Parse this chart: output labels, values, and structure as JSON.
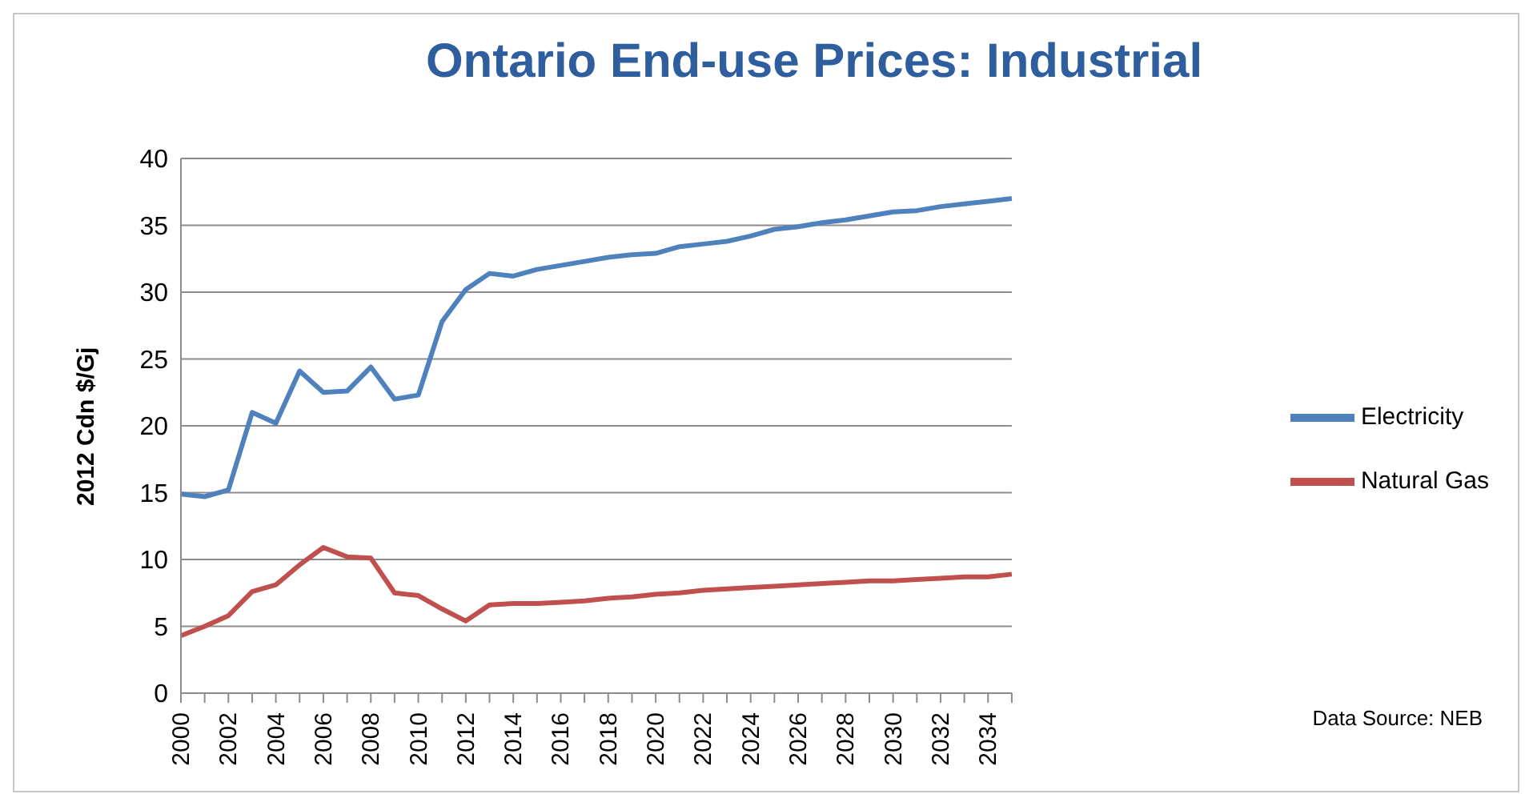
{
  "chart_data": {
    "type": "line",
    "title": "Ontario End-use Prices: Industrial",
    "ylabel": "2012 Cdn $/Gj",
    "categories": [
      "2000",
      null,
      "2002",
      null,
      "2004",
      null,
      "2006",
      null,
      "2008",
      null,
      "2010",
      null,
      "2012",
      null,
      "2014",
      null,
      "2016",
      null,
      "2018",
      null,
      "2020",
      null,
      "2022",
      null,
      "2024",
      null,
      "2026",
      null,
      "2028",
      null,
      "2030",
      null,
      "2032",
      null,
      "2034",
      null
    ],
    "series": [
      {
        "name": "Electricity",
        "color": "#4f81bd",
        "values": [
          14.9,
          14.7,
          15.2,
          21.0,
          20.2,
          24.1,
          22.5,
          22.6,
          24.4,
          22.0,
          22.3,
          27.8,
          30.2,
          31.4,
          31.2,
          31.7,
          32.0,
          32.3,
          32.6,
          32.8,
          32.9,
          33.4,
          33.6,
          33.8,
          34.2,
          34.7,
          34.9,
          35.2,
          35.4,
          35.7,
          36.0,
          36.1,
          36.4,
          36.6,
          36.8,
          37.0
        ]
      },
      {
        "name": "Natural Gas",
        "color": "#c0504d",
        "values": [
          4.3,
          5.0,
          5.8,
          7.6,
          8.1,
          9.6,
          10.9,
          10.2,
          10.1,
          7.5,
          7.3,
          6.3,
          5.4,
          6.6,
          6.7,
          6.7,
          6.8,
          6.9,
          7.1,
          7.2,
          7.4,
          7.5,
          7.7,
          7.8,
          7.9,
          8.0,
          8.1,
          8.2,
          8.3,
          8.4,
          8.4,
          8.5,
          8.6,
          8.7,
          8.7,
          8.9
        ]
      }
    ],
    "ylim": [
      0,
      40
    ],
    "yticks": [
      0,
      5,
      10,
      15,
      20,
      25,
      30,
      35,
      40
    ],
    "grid": "y",
    "legend": "right",
    "marker": "none",
    "line_style": "solid",
    "annotations": [
      "Data Source: NEB"
    ]
  }
}
